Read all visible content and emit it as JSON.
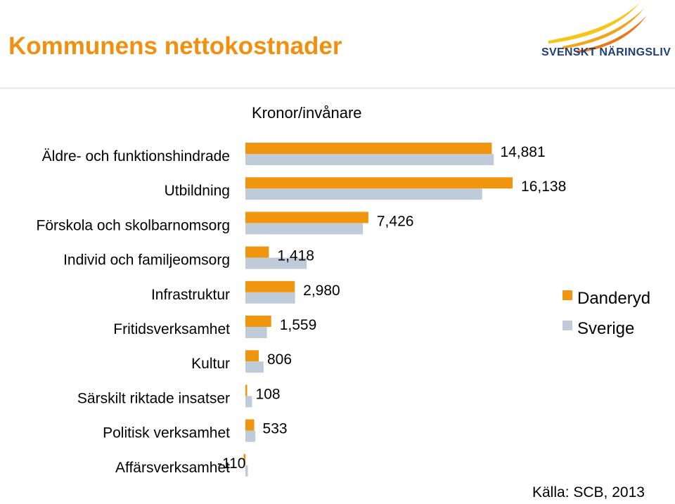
{
  "title": "Kommunens nettokostnader",
  "logo": {
    "brand": "SVENSKT NÄRINGSLIV",
    "colors": [
      "#f5c517",
      "#f0a51c",
      "#e8781a"
    ]
  },
  "source": "Källa: SCB, 2013",
  "colors": {
    "danderyd": "#f0960e",
    "sverige": "#bfcbd8",
    "title": "#f0900e"
  },
  "chart_data": {
    "type": "bar",
    "orientation": "horizontal",
    "title": "Kommunens nettokostnader",
    "xlabel": "Kronor/invånare",
    "ylabel": "",
    "xlim": [
      -300,
      18500
    ],
    "grid": false,
    "legend_position": "right",
    "categories": [
      "Äldre- och funktionshindrade",
      "Utbildning",
      "Förskola och skolbarnomsorg",
      "Individ och familjeomsorg",
      "Infrastruktur",
      "Fritidsverksamhet",
      "Kultur",
      "Särskilt riktade insatser",
      "Politisk verksamhet",
      "Affärsverksamhet"
    ],
    "series": [
      {
        "name": "Danderyd",
        "values": [
          14881,
          16138,
          7426,
          1418,
          2980,
          1559,
          806,
          108,
          533,
          -110
        ]
      },
      {
        "name": "Sverige",
        "values": [
          15000,
          14300,
          7100,
          3700,
          3000,
          1300,
          1100,
          400,
          600,
          150
        ]
      }
    ],
    "data_labels": [
      "14,881",
      "16,138",
      "7,426",
      "1,418",
      "2,980",
      "1,559",
      "806",
      "108",
      "533",
      "-110"
    ]
  }
}
